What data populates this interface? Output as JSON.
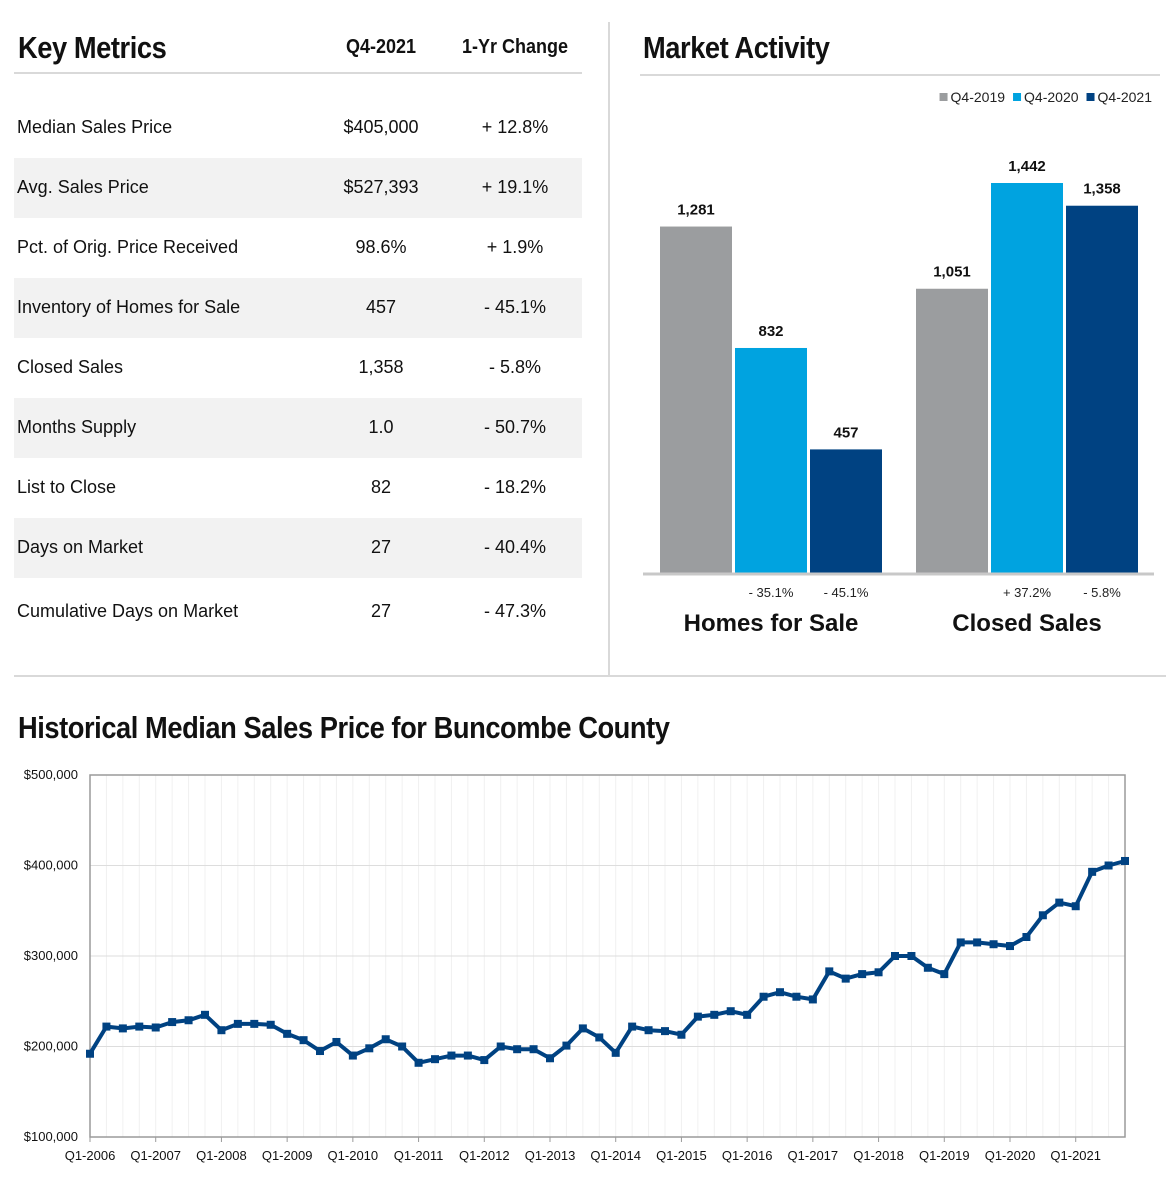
{
  "key_metrics": {
    "title": "Key Metrics",
    "col_current": "Q4-2021",
    "col_change": "1-Yr Change",
    "rows": [
      {
        "label": "Median Sales Price",
        "value": "$405,000",
        "change": "+ 12.8%"
      },
      {
        "label": "Avg. Sales Price",
        "value": "$527,393",
        "change": "+ 19.1%"
      },
      {
        "label": "Pct. of Orig. Price Received",
        "value": "98.6%",
        "change": "+ 1.9%"
      },
      {
        "label": "Inventory of Homes for Sale",
        "value": "457",
        "change": "- 45.1%"
      },
      {
        "label": "Closed Sales",
        "value": "1,358",
        "change": "- 5.8%"
      },
      {
        "label": "Months Supply",
        "value": "1.0",
        "change": "- 50.7%"
      },
      {
        "label": "List to Close",
        "value": "82",
        "change": "- 18.2%"
      },
      {
        "label": "Days on Market",
        "value": "27",
        "change": "- 40.4%"
      },
      {
        "label": "Cumulative Days on Market",
        "value": "27",
        "change": "- 47.3%"
      }
    ]
  },
  "market_activity": {
    "title": "Market Activity"
  },
  "historical": {
    "title": "Historical Median Sales Price for Buncombe County"
  },
  "chart_data": [
    {
      "type": "bar",
      "legend_position": "top-right",
      "categories": [
        "Homes for Sale",
        "Closed Sales"
      ],
      "series": [
        {
          "name": "Q4-2019",
          "color": "#9b9d9f",
          "values": [
            1281,
            1051
          ],
          "labels": [
            "1,281",
            "1,051"
          ]
        },
        {
          "name": "Q4-2020",
          "color": "#00a3e0",
          "values": [
            832,
            1442
          ],
          "labels": [
            "832",
            "1,442"
          ]
        },
        {
          "name": "Q4-2021",
          "color": "#004282",
          "values": [
            457,
            1358
          ],
          "labels": [
            "457",
            "1,358"
          ]
        }
      ],
      "changes": [
        [
          "",
          "- 35.1%",
          "- 45.1%"
        ],
        [
          "",
          "+ 37.2%",
          "- 5.8%"
        ]
      ],
      "ylim": [
        0,
        1500
      ],
      "grid": false
    },
    {
      "type": "line",
      "title": "Historical Median Sales Price for Buncombe County",
      "ylim": [
        100000,
        500000
      ],
      "yticks": [
        100000,
        200000,
        300000,
        400000,
        500000
      ],
      "ytick_labels": [
        "$100,000",
        "$200,000",
        "$300,000",
        "$400,000",
        "$500,000"
      ],
      "xtick_labels": [
        "Q1-2006",
        "Q1-2007",
        "Q1-2008",
        "Q1-2009",
        "Q1-2010",
        "Q1-2011",
        "Q1-2012",
        "Q1-2013",
        "Q1-2014",
        "Q1-2015",
        "Q1-2016",
        "Q1-2017",
        "Q1-2018",
        "Q1-2019",
        "Q1-2020",
        "Q1-2021"
      ],
      "grid": true,
      "line_color": "#004282",
      "x": [
        "Q1-2006",
        "Q2-2006",
        "Q3-2006",
        "Q4-2006",
        "Q1-2007",
        "Q2-2007",
        "Q3-2007",
        "Q4-2007",
        "Q1-2008",
        "Q2-2008",
        "Q3-2008",
        "Q4-2008",
        "Q1-2009",
        "Q2-2009",
        "Q3-2009",
        "Q4-2009",
        "Q1-2010",
        "Q2-2010",
        "Q3-2010",
        "Q4-2010",
        "Q1-2011",
        "Q2-2011",
        "Q3-2011",
        "Q4-2011",
        "Q1-2012",
        "Q2-2012",
        "Q3-2012",
        "Q4-2012",
        "Q1-2013",
        "Q2-2013",
        "Q3-2013",
        "Q4-2013",
        "Q1-2014",
        "Q2-2014",
        "Q3-2014",
        "Q4-2014",
        "Q1-2015",
        "Q2-2015",
        "Q3-2015",
        "Q4-2015",
        "Q1-2016",
        "Q2-2016",
        "Q3-2016",
        "Q4-2016",
        "Q1-2017",
        "Q2-2017",
        "Q3-2017",
        "Q4-2017",
        "Q1-2018",
        "Q2-2018",
        "Q3-2018",
        "Q4-2018",
        "Q1-2019",
        "Q2-2019",
        "Q3-2019",
        "Q4-2019",
        "Q1-2020",
        "Q2-2020",
        "Q3-2020",
        "Q4-2020",
        "Q1-2021",
        "Q2-2021",
        "Q3-2021",
        "Q4-2021"
      ],
      "values": [
        192000,
        222000,
        220000,
        222000,
        221000,
        227000,
        229000,
        235000,
        218000,
        225000,
        225000,
        224000,
        214000,
        207000,
        195000,
        205000,
        190000,
        198000,
        208000,
        200000,
        182000,
        186000,
        190000,
        190000,
        185000,
        200000,
        197000,
        197000,
        187000,
        201000,
        220000,
        210000,
        193000,
        222000,
        218000,
        217000,
        213000,
        233000,
        235000,
        239000,
        235000,
        255000,
        260000,
        255000,
        252000,
        283000,
        275000,
        280000,
        282000,
        300000,
        300000,
        287000,
        280000,
        315000,
        315000,
        313000,
        311000,
        321000,
        345000,
        359000,
        355000,
        393000,
        400000,
        405000
      ]
    }
  ]
}
